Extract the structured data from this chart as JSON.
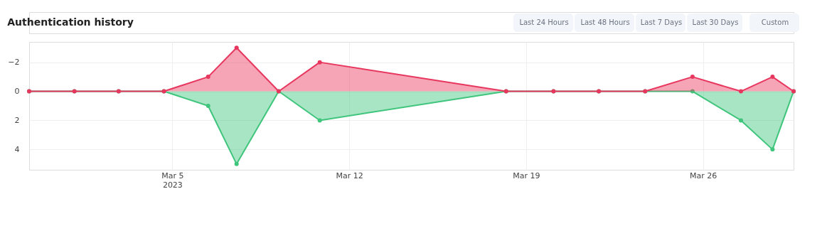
{
  "chart_data": {
    "type": "area",
    "title": "Authentication history",
    "annotations": [
      "Last 24 Hours",
      "Last 48 Hours",
      "Last 7 Days",
      "Last 30 Days",
      "Custom"
    ],
    "x": [
      "2023-02-27T08:00",
      "2023-03-01T03:00",
      "2023-03-02T21:00",
      "2023-03-04T16:00",
      "2023-03-06T10:00",
      "2023-03-07T13:00",
      "2023-03-09T05:00",
      "2023-03-10T20:00",
      "2023-03-18T05:00",
      "2023-03-20T02:00",
      "2023-03-21T21:00",
      "2023-03-23T17:00",
      "2023-03-25T14:00",
      "2023-03-27T12:00",
      "2023-03-28T18:00",
      "2023-03-29T14:00"
    ],
    "series": [
      {
        "color": "#e8375e",
        "values": [
          0,
          0,
          0,
          0,
          -1,
          -3,
          0,
          -2,
          0,
          0,
          0,
          0,
          -1,
          0,
          -1,
          0
        ]
      },
      {
        "color": "#3fc57c",
        "values": [
          0,
          0,
          0,
          0,
          1,
          5,
          0,
          2,
          0,
          0,
          0,
          0,
          0,
          2,
          4,
          0
        ]
      }
    ],
    "xlim": [
      "2023-02-27T08:00",
      "2023-03-29T14:00"
    ],
    "xticks": [
      {
        "value": "2023-03-05",
        "label": "Mar 5\n2023"
      },
      {
        "value": "2023-03-12",
        "label": "Mar 12"
      },
      {
        "value": "2023-03-19",
        "label": "Mar 19"
      },
      {
        "value": "2023-03-26",
        "label": "Mar 26"
      }
    ],
    "ylim": [
      5.4,
      -3.4
    ],
    "yticks": [
      {
        "value": -2,
        "label": "−2"
      },
      0,
      2,
      4
    ],
    "grid": true,
    "marker": "circle",
    "line_style": "solid"
  }
}
